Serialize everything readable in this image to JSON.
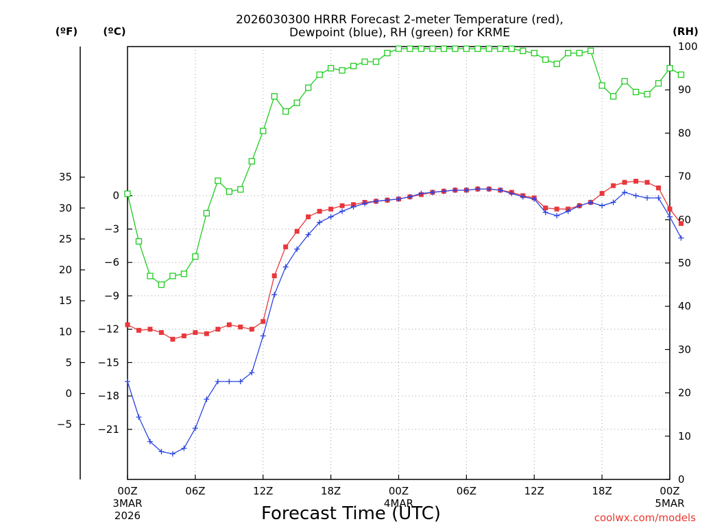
{
  "chart_data": {
    "type": "line",
    "title_line1": "2026030300 HRRR Forecast 2-meter Temperature (red),",
    "title_line2": "Dewpoint (blue), RH (green) for KRME",
    "xlabel": "Forecast Time (UTC)",
    "credit": "coolwx.com/models",
    "units": {
      "fahrenheit": "(ºF)",
      "celsius": "(ºC)",
      "rh": "(RH)"
    },
    "x_range_hours": [
      0,
      48
    ],
    "celsius_range": [
      -25.5,
      13.4
    ],
    "rh_range": [
      0,
      100
    ],
    "x_ticks": [
      {
        "hour": 0,
        "label": "00Z",
        "date": "3MAR",
        "year": "2026"
      },
      {
        "hour": 6,
        "label": "06Z",
        "date": "",
        "year": ""
      },
      {
        "hour": 12,
        "label": "12Z",
        "date": "",
        "year": ""
      },
      {
        "hour": 18,
        "label": "18Z",
        "date": "",
        "year": ""
      },
      {
        "hour": 24,
        "label": "00Z",
        "date": "4MAR",
        "year": ""
      },
      {
        "hour": 30,
        "label": "06Z",
        "date": "",
        "year": ""
      },
      {
        "hour": 36,
        "label": "12Z",
        "date": "",
        "year": ""
      },
      {
        "hour": 42,
        "label": "18Z",
        "date": "",
        "year": ""
      },
      {
        "hour": 48,
        "label": "00Z",
        "date": "5MAR",
        "year": ""
      }
    ],
    "celsius_ticks": [
      {
        "value": 0,
        "label": "0"
      },
      {
        "value": -3,
        "label": "−3"
      },
      {
        "value": -6,
        "label": "−6"
      },
      {
        "value": -9,
        "label": "−9"
      },
      {
        "value": -12,
        "label": "−12"
      },
      {
        "value": -15,
        "label": "−15"
      },
      {
        "value": -18,
        "label": "−18"
      },
      {
        "value": -21,
        "label": "−21"
      }
    ],
    "fahrenheit_ticks": [
      {
        "value": 35,
        "label": "35"
      },
      {
        "value": 30,
        "label": "30"
      },
      {
        "value": 25,
        "label": "25"
      },
      {
        "value": 20,
        "label": "20"
      },
      {
        "value": 15,
        "label": "15"
      },
      {
        "value": 10,
        "label": "10"
      },
      {
        "value": 5,
        "label": "5"
      },
      {
        "value": 0,
        "label": "0"
      },
      {
        "value": -5,
        "label": "−5"
      }
    ],
    "rh_ticks": [
      {
        "value": 100,
        "label": "100"
      },
      {
        "value": 90,
        "label": "90"
      },
      {
        "value": 80,
        "label": "80"
      },
      {
        "value": 70,
        "label": "70"
      },
      {
        "value": 60,
        "label": "60"
      },
      {
        "value": 50,
        "label": "50"
      },
      {
        "value": 40,
        "label": "40"
      },
      {
        "value": 30,
        "label": "30"
      },
      {
        "value": 20,
        "label": "20"
      },
      {
        "value": 10,
        "label": "10"
      },
      {
        "value": 0,
        "label": "0"
      }
    ],
    "colors": {
      "temperature": "#e8383c",
      "dewpoint": "#2a43e0",
      "rh": "#1fcc1f",
      "credit": "#e8382f"
    },
    "series": [
      {
        "name": "Temperature",
        "unit": "degC",
        "values": [
          -11.6,
          -12.1,
          -12.0,
          -12.3,
          -12.9,
          -12.6,
          -12.3,
          -12.4,
          -12.0,
          -11.6,
          -11.8,
          -12.0,
          -11.3,
          -7.2,
          -4.6,
          -3.2,
          -1.9,
          -1.4,
          -1.2,
          -0.9,
          -0.8,
          -0.6,
          -0.5,
          -0.4,
          -0.3,
          -0.1,
          0.1,
          0.3,
          0.4,
          0.5,
          0.5,
          0.6,
          0.6,
          0.5,
          0.3,
          0.0,
          -0.2,
          -1.1,
          -1.2,
          -1.2,
          -0.9,
          -0.6,
          0.2,
          0.9,
          1.2,
          1.3,
          1.2,
          0.7,
          -1.2,
          -2.5
        ]
      },
      {
        "name": "Dewpoint",
        "unit": "degC",
        "values": [
          -16.7,
          -19.9,
          -22.1,
          -23.0,
          -23.2,
          -22.7,
          -20.9,
          -18.3,
          -16.7,
          -16.7,
          -16.7,
          -15.9,
          -12.6,
          -8.9,
          -6.4,
          -4.8,
          -3.5,
          -2.4,
          -1.9,
          -1.4,
          -1.0,
          -0.7,
          -0.5,
          -0.4,
          -0.3,
          -0.1,
          0.2,
          0.3,
          0.4,
          0.5,
          0.5,
          0.6,
          0.6,
          0.5,
          0.2,
          -0.1,
          -0.3,
          -1.5,
          -1.8,
          -1.4,
          -0.9,
          -0.6,
          -0.9,
          -0.6,
          0.3,
          0.0,
          -0.2,
          -0.2,
          -1.9,
          -3.8
        ]
      },
      {
        "name": "Relative Humidity",
        "unit": "percent",
        "values": [
          66,
          55,
          47,
          45,
          47,
          47.5,
          51.5,
          61.5,
          69,
          66.5,
          67,
          73.5,
          80.5,
          88.5,
          85,
          87,
          90.5,
          93.5,
          95,
          94.5,
          95.5,
          96.5,
          96.5,
          98.5,
          99.5,
          99.5,
          99.5,
          99.5,
          99.5,
          99.5,
          99.5,
          99.5,
          99.5,
          99.5,
          99.5,
          99,
          98.5,
          97,
          96,
          98.5,
          98.5,
          99,
          91,
          88.5,
          92,
          89.5,
          89,
          91.5,
          95,
          93.5
        ]
      }
    ]
  }
}
